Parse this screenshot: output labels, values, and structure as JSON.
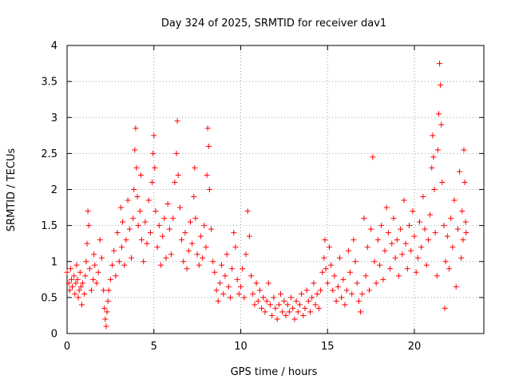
{
  "chart_data": {
    "type": "scatter",
    "title": "Day 324 of 2025, SRMTID for receiver dav1",
    "xlabel": "GPS time / hours",
    "ylabel": "SRMTID / TECUs",
    "xlim": [
      0,
      24
    ],
    "ylim": [
      0,
      4
    ],
    "xticks": [
      0,
      5,
      10,
      15,
      20
    ],
    "yticks": [
      0,
      0.5,
      1,
      1.5,
      2,
      2.5,
      3,
      3.5,
      4
    ],
    "ytick_labels": [
      "0",
      "0.5",
      "1",
      "1.5",
      "2",
      "2.5",
      "3",
      "3.5",
      "4"
    ],
    "grid": true,
    "marker": "+",
    "colors": {
      "points": "#ff0000",
      "grid": "#a0a0a0",
      "axes": "#000000"
    },
    "series": [
      {
        "name": "SRMTID",
        "note": "representative sample of the dense '+' scatter (hours, TECU)",
        "points": [
          [
            0.0,
            0.85
          ],
          [
            0.1,
            0.7
          ],
          [
            0.15,
            0.6
          ],
          [
            0.2,
            0.9
          ],
          [
            0.25,
            0.75
          ],
          [
            0.3,
            0.65
          ],
          [
            0.4,
            0.8
          ],
          [
            0.45,
            0.55
          ],
          [
            0.5,
            0.7
          ],
          [
            0.55,
            0.95
          ],
          [
            0.6,
            0.75
          ],
          [
            0.65,
            0.5
          ],
          [
            0.7,
            0.6
          ],
          [
            0.75,
            0.85
          ],
          [
            0.8,
            0.65
          ],
          [
            0.85,
            0.4
          ],
          [
            0.9,
            0.7
          ],
          [
            1.0,
            0.55
          ],
          [
            1.05,
            0.8
          ],
          [
            1.1,
            1.0
          ],
          [
            1.15,
            1.25
          ],
          [
            1.2,
            1.7
          ],
          [
            1.25,
            1.5
          ],
          [
            1.3,
            0.9
          ],
          [
            1.4,
            0.6
          ],
          [
            1.5,
            0.75
          ],
          [
            1.55,
            1.1
          ],
          [
            1.6,
            0.95
          ],
          [
            1.7,
            0.7
          ],
          [
            1.8,
            0.85
          ],
          [
            1.9,
            1.3
          ],
          [
            2.0,
            1.05
          ],
          [
            2.1,
            0.6
          ],
          [
            2.15,
            0.35
          ],
          [
            2.2,
            0.2
          ],
          [
            2.25,
            0.1
          ],
          [
            2.3,
            0.3
          ],
          [
            2.35,
            0.45
          ],
          [
            2.4,
            0.6
          ],
          [
            2.5,
            0.75
          ],
          [
            2.6,
            0.95
          ],
          [
            2.7,
            1.15
          ],
          [
            2.8,
            0.8
          ],
          [
            2.9,
            1.4
          ],
          [
            3.0,
            1.0
          ],
          [
            3.1,
            1.75
          ],
          [
            3.15,
            1.2
          ],
          [
            3.2,
            1.55
          ],
          [
            3.3,
            0.95
          ],
          [
            3.4,
            1.3
          ],
          [
            3.5,
            1.85
          ],
          [
            3.6,
            1.45
          ],
          [
            3.7,
            1.05
          ],
          [
            3.8,
            1.6
          ],
          [
            3.85,
            2.0
          ],
          [
            3.9,
            2.55
          ],
          [
            3.95,
            2.85
          ],
          [
            4.0,
            2.3
          ],
          [
            4.05,
            1.9
          ],
          [
            4.1,
            1.5
          ],
          [
            4.2,
            1.7
          ],
          [
            4.25,
            2.2
          ],
          [
            4.3,
            1.3
          ],
          [
            4.4,
            1.0
          ],
          [
            4.5,
            1.55
          ],
          [
            4.6,
            1.25
          ],
          [
            4.7,
            1.85
          ],
          [
            4.8,
            1.4
          ],
          [
            4.9,
            2.1
          ],
          [
            4.95,
            2.5
          ],
          [
            5.0,
            2.75
          ],
          [
            5.05,
            2.3
          ],
          [
            5.1,
            1.7
          ],
          [
            5.2,
            1.2
          ],
          [
            5.3,
            1.5
          ],
          [
            5.4,
            0.95
          ],
          [
            5.5,
            1.35
          ],
          [
            5.6,
            1.6
          ],
          [
            5.7,
            1.05
          ],
          [
            5.8,
            1.8
          ],
          [
            5.9,
            1.45
          ],
          [
            6.0,
            1.1
          ],
          [
            6.1,
            1.6
          ],
          [
            6.2,
            2.1
          ],
          [
            6.3,
            2.5
          ],
          [
            6.35,
            2.95
          ],
          [
            6.4,
            2.2
          ],
          [
            6.5,
            1.75
          ],
          [
            6.6,
            1.3
          ],
          [
            6.7,
            1.0
          ],
          [
            6.8,
            1.4
          ],
          [
            6.9,
            0.9
          ],
          [
            7.0,
            1.15
          ],
          [
            7.1,
            1.55
          ],
          [
            7.2,
            1.25
          ],
          [
            7.3,
            1.9
          ],
          [
            7.35,
            2.3
          ],
          [
            7.4,
            1.6
          ],
          [
            7.5,
            1.1
          ],
          [
            7.6,
            0.95
          ],
          [
            7.7,
            1.35
          ],
          [
            7.8,
            1.05
          ],
          [
            7.9,
            1.5
          ],
          [
            8.0,
            1.2
          ],
          [
            8.05,
            2.2
          ],
          [
            8.1,
            2.85
          ],
          [
            8.15,
            2.6
          ],
          [
            8.2,
            2.0
          ],
          [
            8.3,
            1.45
          ],
          [
            8.4,
            1.0
          ],
          [
            8.5,
            0.85
          ],
          [
            8.6,
            0.6
          ],
          [
            8.7,
            0.45
          ],
          [
            8.8,
            0.7
          ],
          [
            8.9,
            0.95
          ],
          [
            9.0,
            0.55
          ],
          [
            9.1,
            0.8
          ],
          [
            9.2,
            1.1
          ],
          [
            9.3,
            0.65
          ],
          [
            9.4,
            0.5
          ],
          [
            9.5,
            0.9
          ],
          [
            9.6,
            1.4
          ],
          [
            9.7,
            1.2
          ],
          [
            9.8,
            0.75
          ],
          [
            9.9,
            0.55
          ],
          [
            10.0,
            0.65
          ],
          [
            10.1,
            0.9
          ],
          [
            10.2,
            0.5
          ],
          [
            10.3,
            1.1
          ],
          [
            10.4,
            1.7
          ],
          [
            10.5,
            1.35
          ],
          [
            10.6,
            0.8
          ],
          [
            10.7,
            0.55
          ],
          [
            10.8,
            0.4
          ],
          [
            10.9,
            0.7
          ],
          [
            11.0,
            0.45
          ],
          [
            11.1,
            0.6
          ],
          [
            11.2,
            0.35
          ],
          [
            11.3,
            0.5
          ],
          [
            11.4,
            0.3
          ],
          [
            11.5,
            0.45
          ],
          [
            11.6,
            0.7
          ],
          [
            11.7,
            0.4
          ],
          [
            11.8,
            0.25
          ],
          [
            11.9,
            0.5
          ],
          [
            12.0,
            0.35
          ],
          [
            12.1,
            0.2
          ],
          [
            12.2,
            0.4
          ],
          [
            12.3,
            0.55
          ],
          [
            12.4,
            0.3
          ],
          [
            12.5,
            0.45
          ],
          [
            12.6,
            0.25
          ],
          [
            12.7,
            0.4
          ],
          [
            12.8,
            0.3
          ],
          [
            12.9,
            0.5
          ],
          [
            13.0,
            0.35
          ],
          [
            13.1,
            0.2
          ],
          [
            13.2,
            0.45
          ],
          [
            13.3,
            0.3
          ],
          [
            13.4,
            0.4
          ],
          [
            13.5,
            0.55
          ],
          [
            13.6,
            0.25
          ],
          [
            13.7,
            0.35
          ],
          [
            13.8,
            0.6
          ],
          [
            13.9,
            0.45
          ],
          [
            14.0,
            0.3
          ],
          [
            14.1,
            0.5
          ],
          [
            14.2,
            0.7
          ],
          [
            14.3,
            0.4
          ],
          [
            14.4,
            0.55
          ],
          [
            14.5,
            0.35
          ],
          [
            14.6,
            0.6
          ],
          [
            14.7,
            0.85
          ],
          [
            14.8,
            1.05
          ],
          [
            14.85,
            1.3
          ],
          [
            14.9,
            0.9
          ],
          [
            15.0,
            0.7
          ],
          [
            15.1,
            1.2
          ],
          [
            15.2,
            0.95
          ],
          [
            15.3,
            0.6
          ],
          [
            15.4,
            0.8
          ],
          [
            15.5,
            0.45
          ],
          [
            15.6,
            0.65
          ],
          [
            15.7,
            1.05
          ],
          [
            15.8,
            0.5
          ],
          [
            15.9,
            0.75
          ],
          [
            16.0,
            0.4
          ],
          [
            16.1,
            0.6
          ],
          [
            16.2,
            1.15
          ],
          [
            16.3,
            0.85
          ],
          [
            16.4,
            0.55
          ],
          [
            16.5,
            1.3
          ],
          [
            16.6,
            1.0
          ],
          [
            16.7,
            0.7
          ],
          [
            16.8,
            0.45
          ],
          [
            16.9,
            0.3
          ],
          [
            17.0,
            0.55
          ],
          [
            17.1,
            1.6
          ],
          [
            17.2,
            0.8
          ],
          [
            17.3,
            1.2
          ],
          [
            17.4,
            0.6
          ],
          [
            17.5,
            1.45
          ],
          [
            17.6,
            2.45
          ],
          [
            17.7,
            1.0
          ],
          [
            17.8,
            0.7
          ],
          [
            17.9,
            1.3
          ],
          [
            18.0,
            0.95
          ],
          [
            18.1,
            1.5
          ],
          [
            18.2,
            0.75
          ],
          [
            18.3,
            1.15
          ],
          [
            18.4,
            1.75
          ],
          [
            18.5,
            1.4
          ],
          [
            18.6,
            0.9
          ],
          [
            18.7,
            1.25
          ],
          [
            18.8,
            1.6
          ],
          [
            18.9,
            1.05
          ],
          [
            19.0,
            1.3
          ],
          [
            19.1,
            0.8
          ],
          [
            19.2,
            1.45
          ],
          [
            19.3,
            1.1
          ],
          [
            19.4,
            1.85
          ],
          [
            19.5,
            1.25
          ],
          [
            19.6,
            0.9
          ],
          [
            19.7,
            1.5
          ],
          [
            19.8,
            1.15
          ],
          [
            19.9,
            1.7
          ],
          [
            20.0,
            1.35
          ],
          [
            20.1,
            0.85
          ],
          [
            20.2,
            1.05
          ],
          [
            20.3,
            1.55
          ],
          [
            20.4,
            1.2
          ],
          [
            20.5,
            1.9
          ],
          [
            20.6,
            1.45
          ],
          [
            20.7,
            0.95
          ],
          [
            20.8,
            1.3
          ],
          [
            20.9,
            1.65
          ],
          [
            21.0,
            2.3
          ],
          [
            21.05,
            2.75
          ],
          [
            21.1,
            2.45
          ],
          [
            21.15,
            2.0
          ],
          [
            21.2,
            1.4
          ],
          [
            21.3,
            0.8
          ],
          [
            21.35,
            2.55
          ],
          [
            21.4,
            3.05
          ],
          [
            21.45,
            3.75
          ],
          [
            21.5,
            3.45
          ],
          [
            21.55,
            2.9
          ],
          [
            21.6,
            2.1
          ],
          [
            21.7,
            1.5
          ],
          [
            21.75,
            0.35
          ],
          [
            21.8,
            1.0
          ],
          [
            21.9,
            1.35
          ],
          [
            22.0,
            0.9
          ],
          [
            22.1,
            1.6
          ],
          [
            22.2,
            1.2
          ],
          [
            22.3,
            1.85
          ],
          [
            22.4,
            0.65
          ],
          [
            22.5,
            1.45
          ],
          [
            22.6,
            2.25
          ],
          [
            22.7,
            1.05
          ],
          [
            22.75,
            1.7
          ],
          [
            22.8,
            1.3
          ],
          [
            22.85,
            2.55
          ],
          [
            22.9,
            2.1
          ],
          [
            22.95,
            1.55
          ],
          [
            22.98,
            1.4
          ]
        ]
      }
    ]
  }
}
